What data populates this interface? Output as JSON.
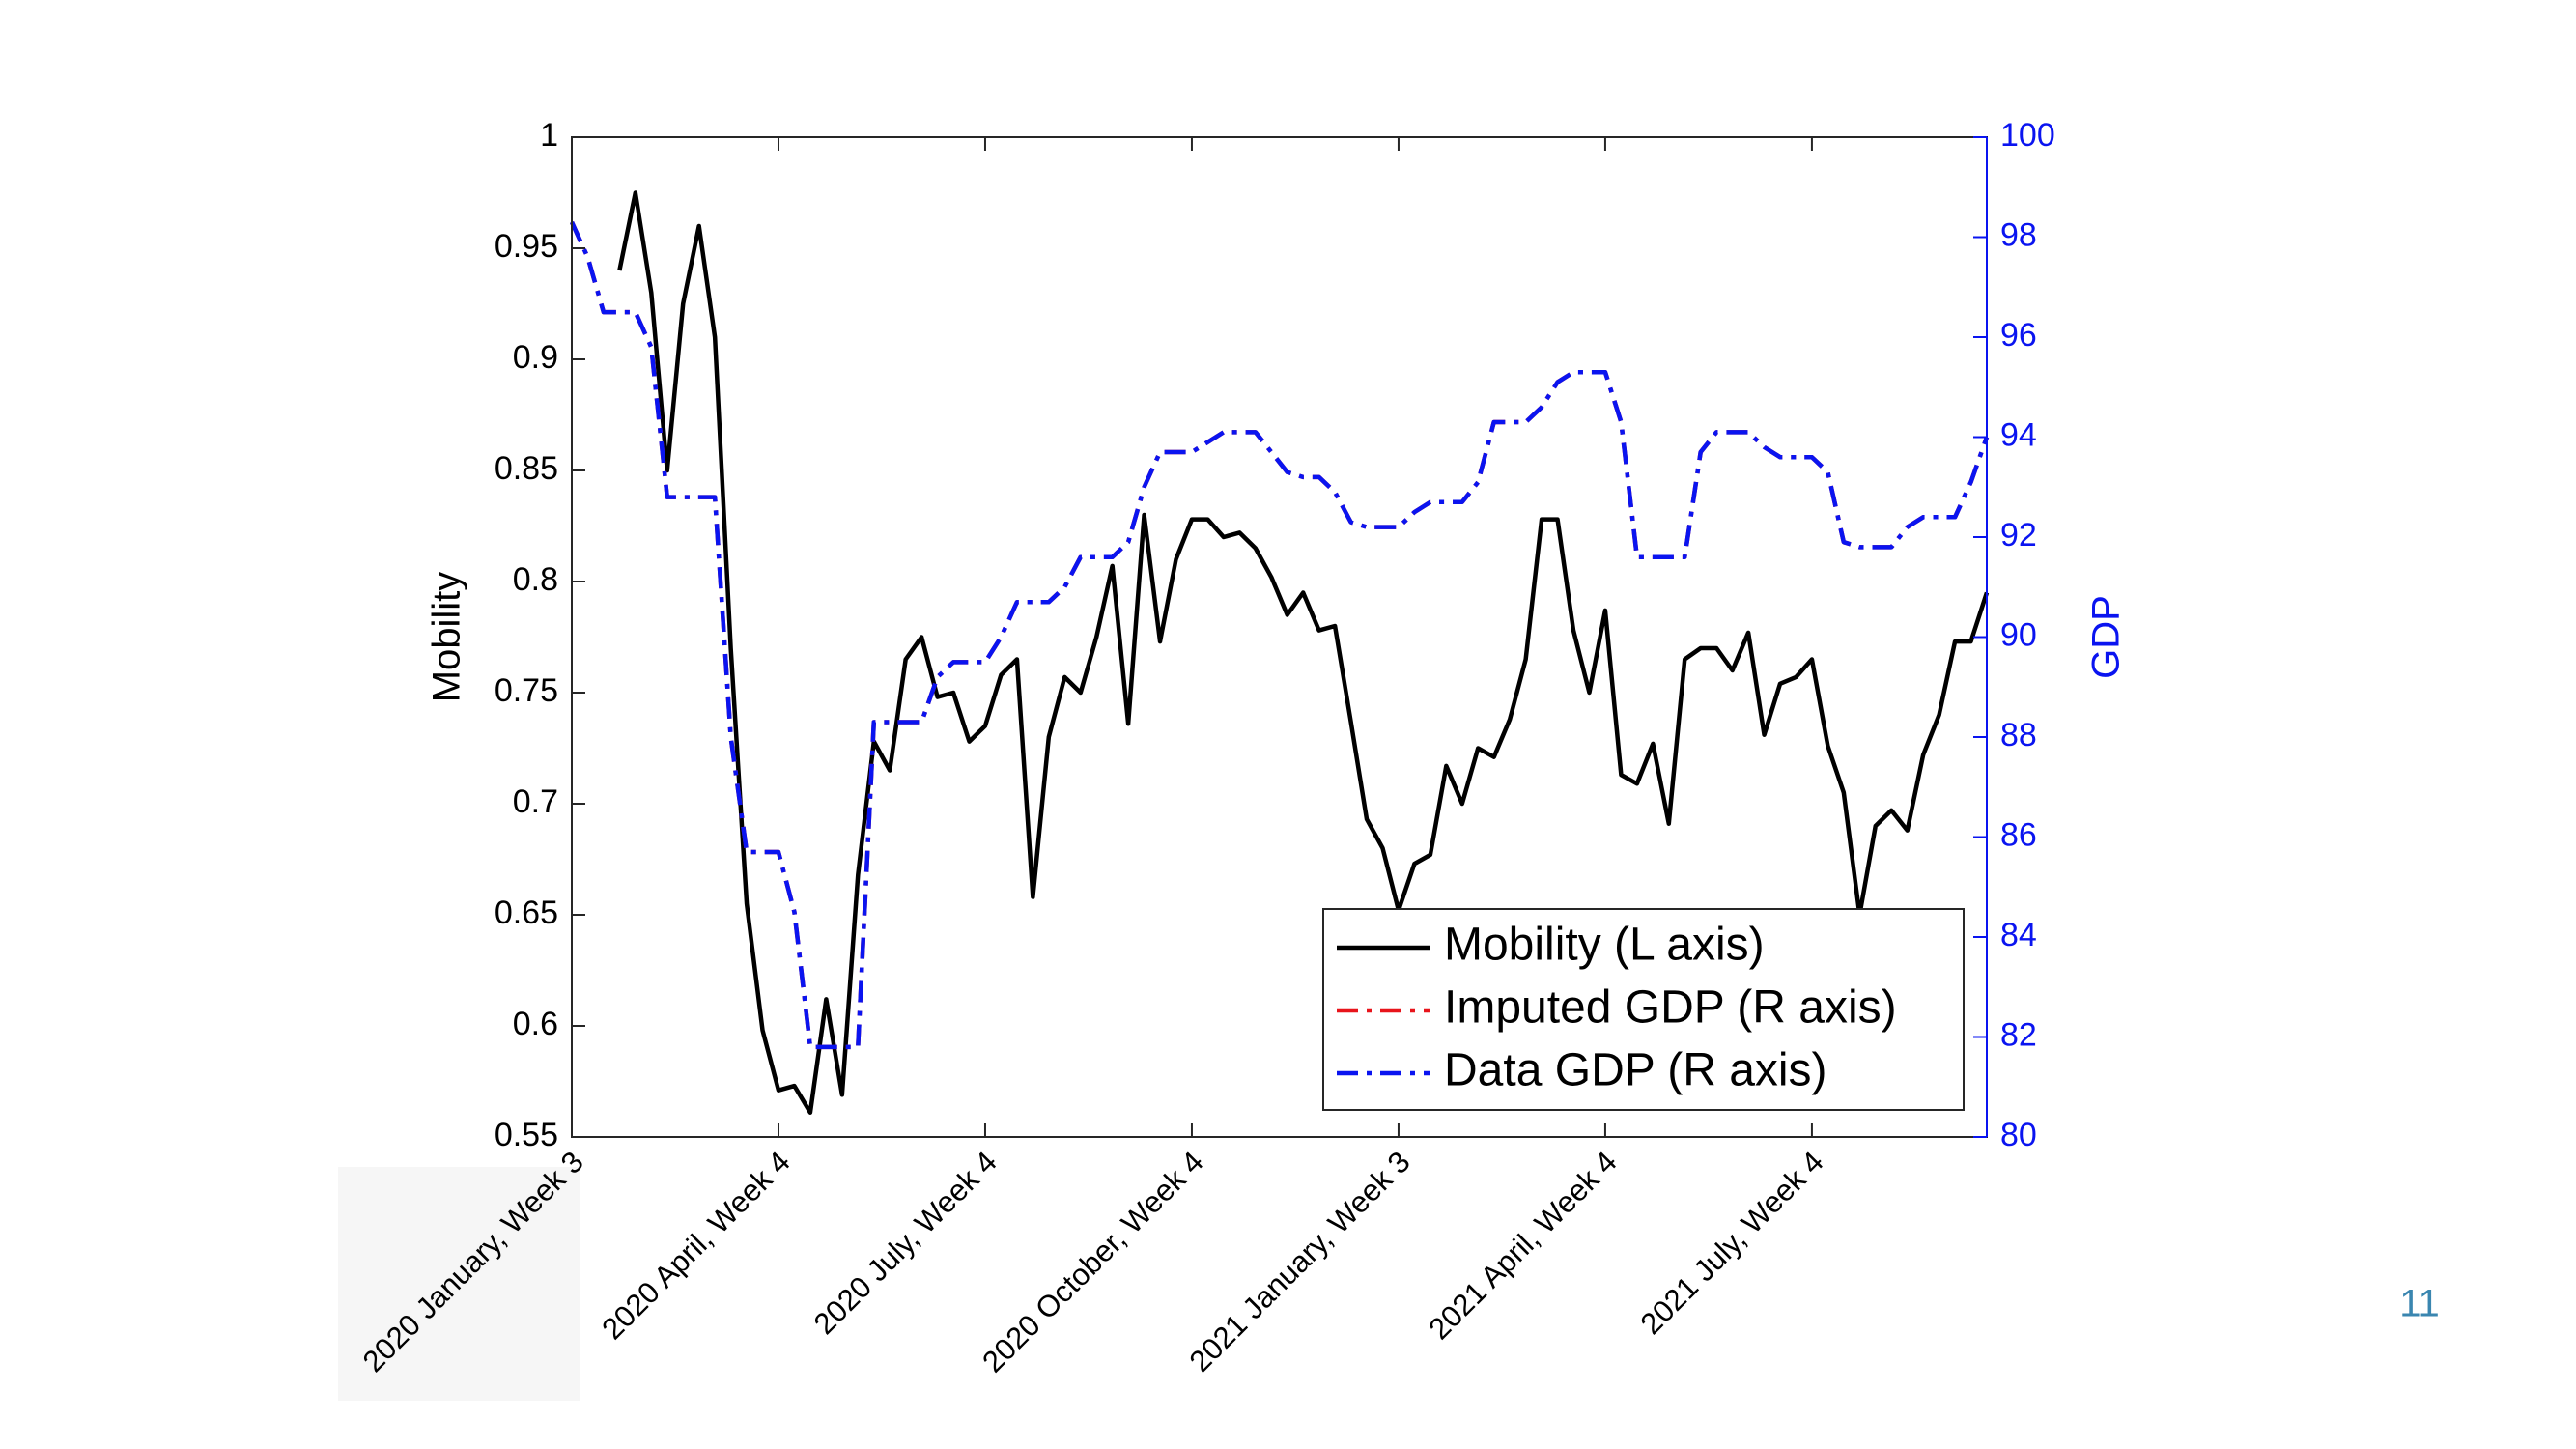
{
  "chart_data": {
    "type": "line",
    "y_label": "Mobility",
    "y2_label": "GDP",
    "categories": [
      "2020 January, Week 3",
      null,
      null,
      null,
      null,
      null,
      null,
      null,
      null,
      null,
      null,
      null,
      null,
      "2020 April, Week 4",
      null,
      null,
      null,
      null,
      null,
      null,
      null,
      null,
      null,
      null,
      null,
      null,
      "2020 July, Week 4",
      null,
      null,
      null,
      null,
      null,
      null,
      null,
      null,
      null,
      null,
      null,
      null,
      "2020 October, Week 4",
      null,
      null,
      null,
      null,
      null,
      null,
      null,
      null,
      null,
      null,
      null,
      null,
      "2021 January, Week 3",
      null,
      null,
      null,
      null,
      null,
      null,
      null,
      null,
      null,
      null,
      null,
      null,
      "2021 April, Week 4",
      null,
      null,
      null,
      null,
      null,
      null,
      null,
      null,
      null,
      null,
      null,
      null,
      "2021 July, Week 4",
      null,
      null,
      null,
      null,
      null,
      null,
      null,
      null,
      null,
      null,
      null
    ],
    "series": [
      {
        "name": "Mobility (L axis)",
        "color": "#000000",
        "style": "solid",
        "axis": "y",
        "values": [
          null,
          null,
          null,
          0.94,
          0.975,
          0.93,
          0.85,
          0.925,
          0.96,
          0.91,
          0.77,
          0.655,
          0.598,
          0.571,
          0.573,
          0.561,
          0.612,
          0.569,
          0.668,
          0.728,
          0.715,
          0.765,
          0.775,
          0.748,
          0.75,
          0.728,
          0.735,
          0.758,
          0.765,
          0.658,
          0.73,
          0.757,
          0.75,
          0.775,
          0.807,
          0.736,
          0.83,
          0.773,
          0.81,
          0.828,
          0.828,
          0.82,
          0.822,
          0.815,
          0.802,
          0.785,
          0.795,
          0.778,
          0.78,
          0.737,
          0.693,
          0.68,
          0.652,
          0.673,
          0.677,
          0.717,
          0.7,
          0.725,
          0.721,
          0.738,
          0.765,
          0.828,
          0.828,
          0.778,
          0.75,
          0.787,
          0.713,
          0.709,
          0.727,
          0.691,
          0.765,
          0.77,
          0.77,
          0.76,
          0.777,
          0.731,
          0.754,
          0.757,
          0.765,
          0.726,
          0.705,
          0.65,
          0.69,
          0.697,
          0.688,
          0.722,
          0.74,
          0.773,
          0.773,
          0.795
        ]
      },
      {
        "name": "Imputed GDP (R axis)",
        "color": "#e8141b",
        "style": "dashdot",
        "axis": "y2",
        "values": [
          98.3,
          97.6,
          96.5,
          96.5,
          96.5,
          95.8,
          92.8,
          92.8,
          92.8,
          92.8,
          88,
          85.7,
          85.7,
          85.7,
          84.5,
          81.8,
          81.8,
          81.8,
          81.8,
          88.3,
          88.3,
          88.3,
          88.3,
          89.2,
          89.5,
          89.5,
          89.5,
          90,
          90.7,
          90.7,
          90.7,
          91,
          91.6,
          91.6,
          91.6,
          91.9,
          93,
          93.7,
          93.7,
          93.7,
          93.9,
          94.1,
          94.1,
          94.1,
          93.7,
          93.3,
          93.2,
          93.2,
          92.9,
          92.3,
          92.2,
          92.2,
          92.2,
          92.5,
          92.7,
          92.7,
          92.7,
          93.1,
          94.3,
          94.3,
          94.3,
          94.6,
          95.1,
          95.3,
          95.3,
          95.3,
          94.3,
          91.6,
          91.6,
          91.6,
          91.6,
          93.7,
          94.1,
          94.1,
          94.1,
          93.8,
          93.6,
          93.6,
          93.6,
          93.3,
          91.9,
          91.8,
          91.8,
          91.8,
          92.2,
          92.4,
          92.4,
          92.4,
          93.1,
          94
        ]
      },
      {
        "name": "Data GDP (R axis)",
        "color": "#0a14f0",
        "style": "dashdot",
        "axis": "y2",
        "values": [
          98.3,
          97.6,
          96.5,
          96.5,
          96.5,
          95.8,
          92.8,
          92.8,
          92.8,
          92.8,
          88,
          85.7,
          85.7,
          85.7,
          84.5,
          81.8,
          81.8,
          81.8,
          81.8,
          88.3,
          88.3,
          88.3,
          88.3,
          89.2,
          89.5,
          89.5,
          89.5,
          90,
          90.7,
          90.7,
          90.7,
          91,
          91.6,
          91.6,
          91.6,
          91.9,
          93,
          93.7,
          93.7,
          93.7,
          93.9,
          94.1,
          94.1,
          94.1,
          93.7,
          93.3,
          93.2,
          93.2,
          92.9,
          92.3,
          92.2,
          92.2,
          92.2,
          92.5,
          92.7,
          92.7,
          92.7,
          93.1,
          94.3,
          94.3,
          94.3,
          94.6,
          95.1,
          95.3,
          95.3,
          95.3,
          94.3,
          91.6,
          91.6,
          91.6,
          91.6,
          93.7,
          94.1,
          94.1,
          94.1,
          93.8,
          93.6,
          93.6,
          93.6,
          93.3,
          91.9,
          91.8,
          91.8,
          91.8,
          92.2,
          92.4,
          92.4,
          92.4,
          93.1,
          94
        ]
      }
    ],
    "ylim": [
      0.55,
      1
    ],
    "yticks": [
      0.55,
      0.6,
      0.65,
      0.7,
      0.75,
      0.8,
      0.85,
      0.9,
      0.95,
      1
    ],
    "y2lim": [
      80,
      100
    ],
    "y2ticks": [
      80,
      82,
      84,
      86,
      88,
      90,
      92,
      94,
      96,
      98,
      100
    ],
    "y2_color": "#0a14f0",
    "grid": false,
    "legend": "lower right"
  },
  "page_number": "11"
}
